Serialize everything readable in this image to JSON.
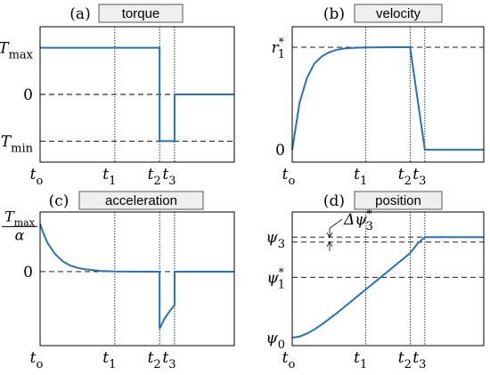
{
  "style": {
    "curve_color": "#2672b8",
    "label_box_fill": "#efefef",
    "label_box_stroke": "#555555",
    "dashed_color": "#000000"
  },
  "chart_data": [
    {
      "type": "line",
      "tag": "(a)",
      "title": "torque",
      "x_ticks": [
        {
          "main": "t",
          "sub": "o",
          "value": 0
        },
        {
          "main": "t",
          "sub": "1",
          "value": 0.5
        },
        {
          "main": "t",
          "sub": "2",
          "value": 0.8
        },
        {
          "main": "t",
          "sub": "3",
          "value": 0.9
        }
      ],
      "y_ticks": [
        {
          "main": "T",
          "sub": "max",
          "value": 1
        },
        {
          "main": "0",
          "sub": "",
          "value": 0
        },
        {
          "main": "T",
          "sub": "min",
          "value": -1
        }
      ],
      "xlim": [
        0,
        1.3
      ],
      "ylim": [
        -1.45,
        1.45
      ],
      "dashed_x": [
        0.5,
        0.8,
        0.9
      ],
      "dashed_y": [
        {
          "y": 0,
          "from": 0
        },
        {
          "y": -1,
          "from": 0
        }
      ],
      "series": [
        {
          "x": [
            0,
            0.8,
            0.8,
            0.9,
            0.9,
            1.3
          ],
          "y": [
            1,
            1,
            -1,
            -1,
            0,
            0
          ]
        }
      ]
    },
    {
      "type": "line",
      "tag": "(b)",
      "title": "velocity",
      "x_ticks": [
        {
          "main": "t",
          "sub": "o",
          "value": 0
        },
        {
          "main": "t",
          "sub": "1",
          "value": 0.5
        },
        {
          "main": "t",
          "sub": "2",
          "value": 0.8
        },
        {
          "main": "t",
          "sub": "3",
          "value": 0.9
        }
      ],
      "y_ticks": [
        {
          "main": "r",
          "sub": "1",
          "sup": "*",
          "value": 1
        },
        {
          "main": "0",
          "sub": "",
          "value": 0
        }
      ],
      "xlim": [
        0,
        1.3
      ],
      "ylim": [
        -0.12,
        1.2
      ],
      "dashed_x": [
        0.5,
        0.8,
        0.9
      ],
      "dashed_y": [
        {
          "y": 1,
          "from": 0
        }
      ],
      "series": [
        {
          "x": [
            0,
            0.05,
            0.1,
            0.15,
            0.2,
            0.25,
            0.3,
            0.35,
            0.4,
            0.5,
            0.6,
            0.7,
            0.8,
            0.9,
            1.3
          ],
          "y": [
            0,
            0.46,
            0.7,
            0.84,
            0.91,
            0.95,
            0.975,
            0.987,
            0.993,
            0.998,
            0.999,
            1.0,
            1.0,
            0,
            0
          ]
        }
      ]
    },
    {
      "type": "line",
      "tag": "(c)",
      "title": "acceleration",
      "x_ticks": [
        {
          "main": "t",
          "sub": "o",
          "value": 0
        },
        {
          "main": "t",
          "sub": "1",
          "value": 0.5
        },
        {
          "main": "t",
          "sub": "2",
          "value": 0.8
        },
        {
          "main": "t",
          "sub": "3",
          "value": 0.9
        }
      ],
      "y_ticks": [
        {
          "main": "0",
          "sub": "",
          "value": 0
        }
      ],
      "y_fraction_tick": {
        "num_main": "T",
        "num_sub": "max",
        "den": "α",
        "value": 1
      },
      "xlim": [
        0,
        1.3
      ],
      "ylim": [
        -1.55,
        1.25
      ],
      "dashed_x": [
        0.5,
        0.8,
        0.9
      ],
      "dashed_y": [
        {
          "y": 0,
          "from": 0
        }
      ],
      "series": [
        {
          "x": [
            0,
            0.025,
            0.05,
            0.1,
            0.15,
            0.2,
            0.25,
            0.3,
            0.4,
            0.5,
            0.6,
            0.7,
            0.78,
            0.8,
            0.8,
            0.83,
            0.86,
            0.9,
            0.9,
            1.3
          ],
          "y": [
            1,
            0.78,
            0.6,
            0.37,
            0.22,
            0.13,
            0.08,
            0.05,
            0.015,
            0.004,
            0.001,
            0,
            0,
            0,
            -1.2,
            -1.0,
            -0.86,
            -0.7,
            0,
            0
          ]
        }
      ]
    },
    {
      "type": "line",
      "tag": "(d)",
      "title": "position",
      "annotation": {
        "main": "Δψ",
        "sub": "3",
        "sup": "*"
      },
      "x_ticks": [
        {
          "main": "t",
          "sub": "o",
          "value": 0
        },
        {
          "main": "t",
          "sub": "1",
          "value": 0.5
        },
        {
          "main": "t",
          "sub": "2",
          "value": 0.8
        },
        {
          "main": "t",
          "sub": "3",
          "value": 0.9
        }
      ],
      "y_ticks": [
        {
          "main": "ψ",
          "sub": "3",
          "value": 1
        },
        {
          "main": "ψ",
          "sub": "1",
          "sup": "*",
          "value": 0.6
        },
        {
          "main": "ψ",
          "sub": "0",
          "value": 0
        }
      ],
      "xlim": [
        0,
        1.3
      ],
      "ylim": [
        -0.08,
        1.25
      ],
      "dashed_x": [
        0.5,
        0.8,
        0.9
      ],
      "dashed_y": [
        {
          "y": 1,
          "from": 0
        },
        {
          "y": 0.95,
          "from": 0
        },
        {
          "y": 0.6,
          "from": 0
        }
      ],
      "series": [
        {
          "x": [
            0,
            0.05,
            0.1,
            0.15,
            0.2,
            0.3,
            0.4,
            0.5,
            0.6,
            0.7,
            0.8,
            0.85,
            0.9,
            1.3
          ],
          "y": [
            0,
            0.01,
            0.04,
            0.08,
            0.13,
            0.24,
            0.36,
            0.48,
            0.6,
            0.72,
            0.84,
            0.935,
            1.0,
            1.0
          ]
        }
      ]
    }
  ]
}
